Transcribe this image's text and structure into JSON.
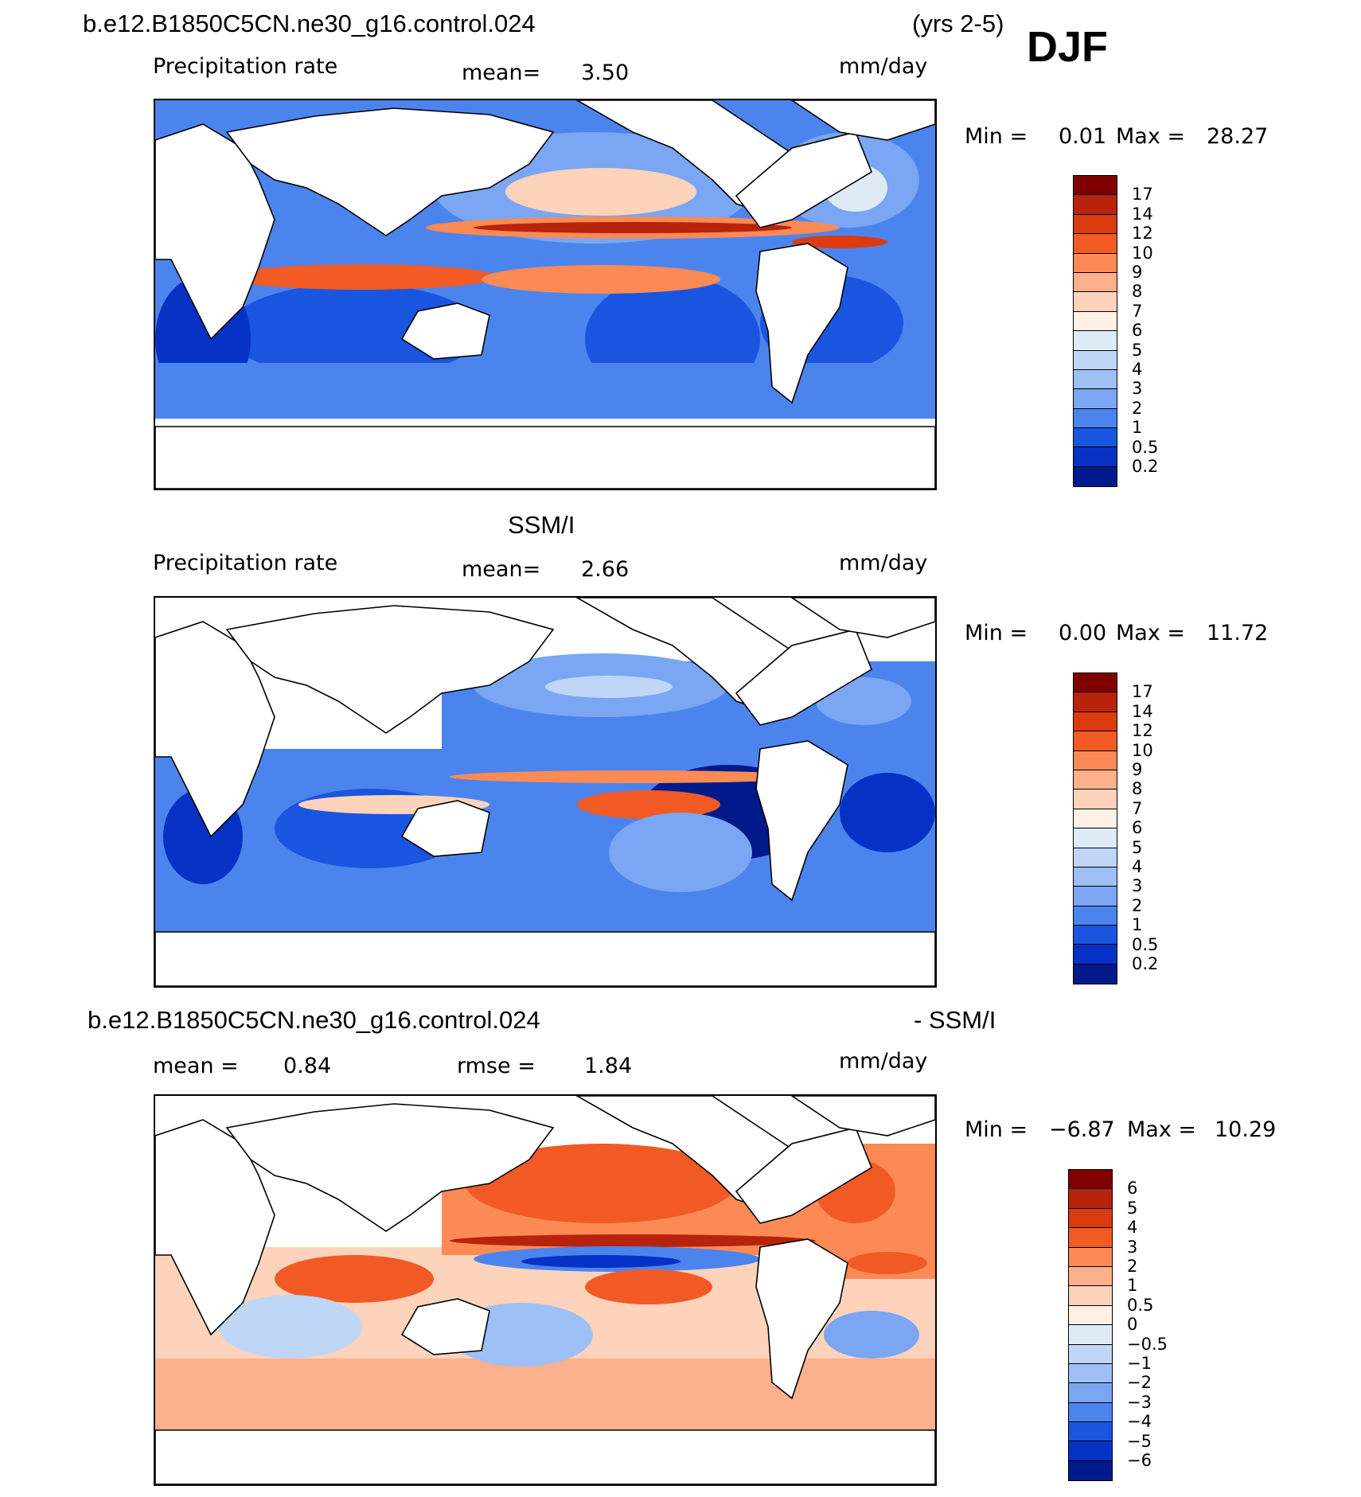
{
  "header": {
    "case_name": "b.e12.B1850C5CN.ne30_g16.control.024",
    "years": "(yrs 2-5)",
    "season": "DJF"
  },
  "panels": [
    {
      "id": "model",
      "title": "",
      "variable": "Precipitation rate",
      "stat_label": "mean=",
      "stat_value": "3.50",
      "rmse_label": "",
      "rmse_value": "",
      "units": "mm/day",
      "min_label": "Min =",
      "min_value": "0.01",
      "max_label": "Max =",
      "max_value": "28.27",
      "colorbar_labels": [
        "17",
        "14",
        "12",
        "10",
        "9",
        "8",
        "7",
        "6",
        "5",
        "4",
        "3",
        "2",
        "1",
        "0.5",
        "0.2"
      ]
    },
    {
      "id": "obs",
      "title": "SSM/I",
      "variable": "Precipitation rate",
      "stat_label": "mean=",
      "stat_value": "2.66",
      "rmse_label": "",
      "rmse_value": "",
      "units": "mm/day",
      "min_label": "Min =",
      "min_value": "0.00",
      "max_label": "Max =",
      "max_value": "11.72",
      "colorbar_labels": [
        "17",
        "14",
        "12",
        "10",
        "9",
        "8",
        "7",
        "6",
        "5",
        "4",
        "3",
        "2",
        "1",
        "0.5",
        "0.2"
      ]
    },
    {
      "id": "diff",
      "title_left": "b.e12.B1850C5CN.ne30_g16.control.024",
      "title_right": "- SSM/I",
      "stat_label": "mean =",
      "stat_value": "0.84",
      "rmse_label": "rmse =",
      "rmse_value": "1.84",
      "units": "mm/day",
      "min_label": "Min =",
      "min_value": "−6.87",
      "max_label": "Max =",
      "max_value": "10.29",
      "colorbar_labels": [
        "6",
        "5",
        "4",
        "3",
        "2",
        "1",
        "0.5",
        "0",
        "−0.5",
        "−1",
        "−2",
        "−3",
        "−4",
        "−5",
        "−6"
      ]
    }
  ],
  "colors": {
    "precip_scale": [
      "#800000",
      "#b8230c",
      "#dc3b0f",
      "#f15a24",
      "#fb8a55",
      "#fdb08c",
      "#fdd3bc",
      "#fff0e6",
      "#deebf7",
      "#bfd6f6",
      "#9ec0f5",
      "#7aa6f3",
      "#4c84ee",
      "#1a55e0",
      "#0532c4",
      "#001a8c"
    ],
    "diff_scale": [
      "#800000",
      "#b8230c",
      "#dc3b0f",
      "#f15a24",
      "#fb8a55",
      "#fdb08c",
      "#fdd3bc",
      "#fff0e6",
      "#deebf7",
      "#bfd6f6",
      "#9ec0f5",
      "#7aa6f3",
      "#4c84ee",
      "#1a55e0",
      "#0532c4",
      "#001a8c"
    ],
    "land": "#ffffff",
    "coast": "#000000"
  }
}
